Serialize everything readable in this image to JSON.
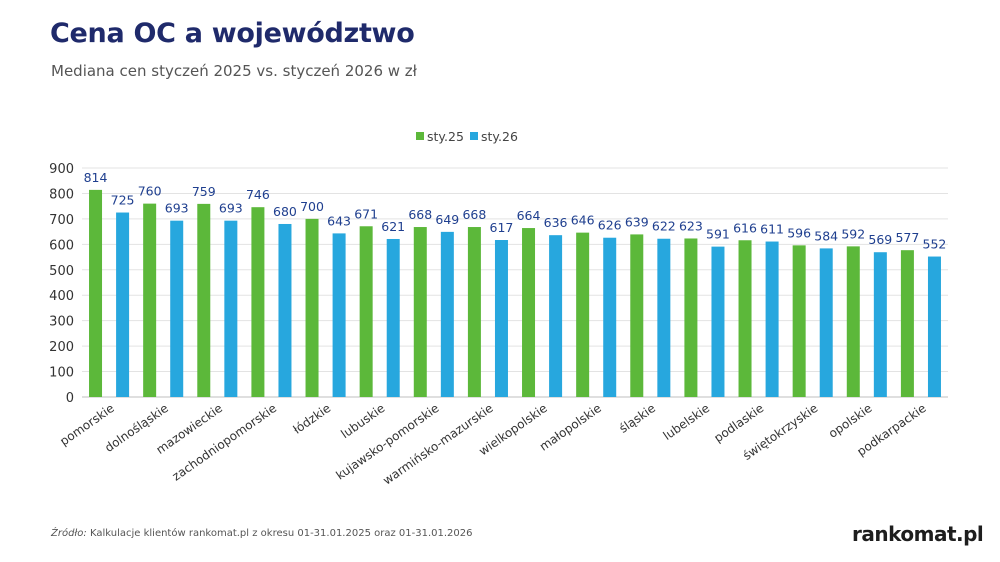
{
  "title": "Cena OC a województwo",
  "subtitle": "Mediana cen styczeń 2025 vs. styczeń 2026 w zł",
  "source": {
    "label": "Źródło:",
    "text": " Kalkulacje klientów rankomat.pl z okresu 01-31.01.2025 oraz 01-31.01.2026"
  },
  "logo": "rankomat.pl",
  "colors": {
    "sty25": "#5cb83a",
    "sty26": "#27a7de",
    "label": "#1f3f8f",
    "grid": "#e3e3e3",
    "axis": "#333333"
  },
  "chart_data": {
    "type": "bar",
    "title": "Cena OC a województwo",
    "ylim": [
      0,
      900
    ],
    "yticks": [
      0,
      100,
      200,
      300,
      400,
      500,
      600,
      700,
      800,
      900
    ],
    "grid": true,
    "legend_position": "top-center",
    "categories": [
      "pomorskie",
      "dolnośląskie",
      "mazowieckie",
      "zachodniopomorskie",
      "łódzkie",
      "lubuskie",
      "kujawsko-pomorskie",
      "warmińsko-mazurskie",
      "wielkopolskie",
      "małopolskie",
      "śląskie",
      "lubelskie",
      "podlaskie",
      "świętokrzyskie",
      "opolskie",
      "podkarpackie"
    ],
    "series": [
      {
        "name": "sty.25",
        "color": "#5cb83a",
        "values": [
          814,
          760,
          759,
          746,
          700,
          671,
          668,
          668,
          664,
          646,
          639,
          623,
          616,
          596,
          592,
          577
        ]
      },
      {
        "name": "sty.26",
        "color": "#27a7de",
        "values": [
          725,
          693,
          693,
          680,
          643,
          621,
          649,
          617,
          636,
          626,
          622,
          591,
          611,
          584,
          569,
          552
        ]
      }
    ]
  }
}
